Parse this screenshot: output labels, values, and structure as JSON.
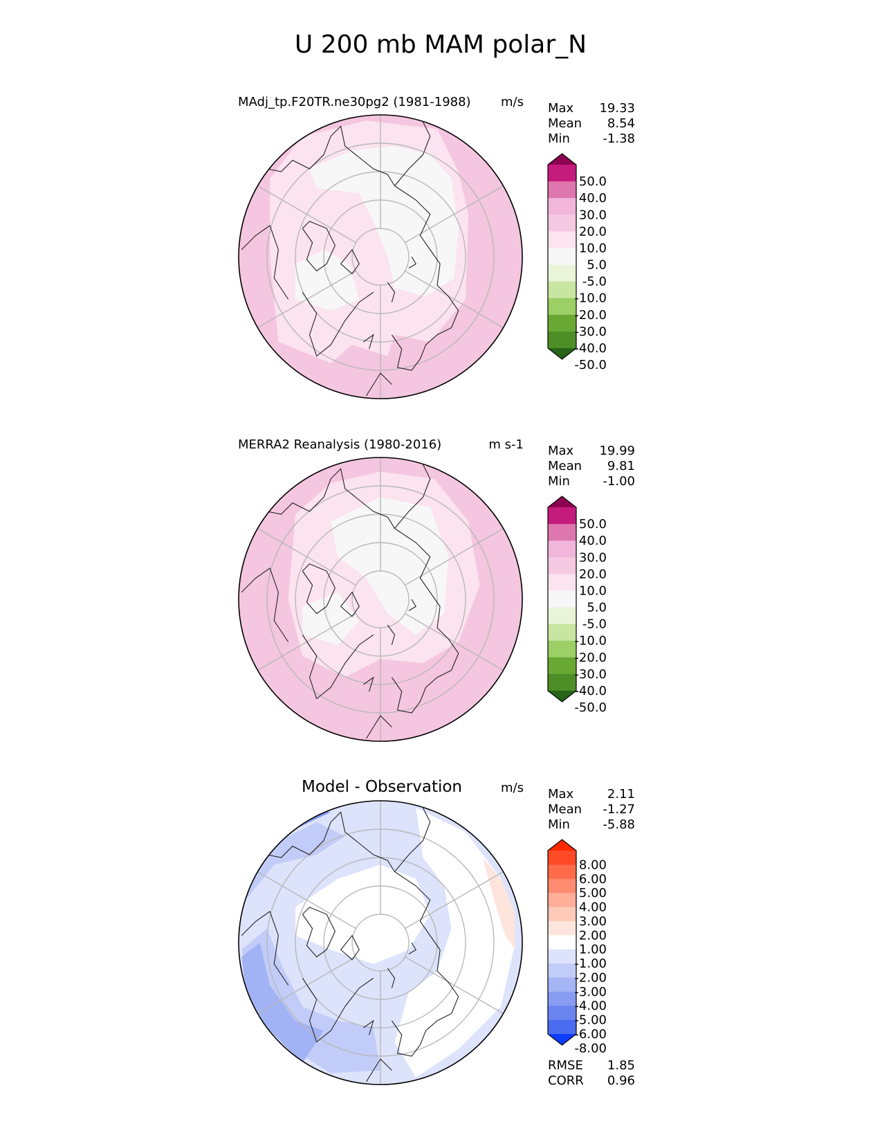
{
  "title": "U 200 mb MAM polar_N",
  "chart_data": [
    {
      "type": "heatmap",
      "projection": "north polar stereographic",
      "title": "MAdj_tp.F20TR.ne30pg2 (1981-1988)",
      "units": "m/s",
      "stats": [
        {
          "label": "Max",
          "value": "19.33"
        },
        {
          "label": "Mean",
          "value": "8.54"
        },
        {
          "label": "Min",
          "value": "-1.38"
        }
      ],
      "colorbar": {
        "tick_labels": [
          "50.0",
          "40.0",
          "30.0",
          "20.0",
          "10.0",
          "5.0",
          "-5.0",
          "-10.0",
          "-20.0",
          "-30.0",
          "-40.0",
          "-50.0"
        ],
        "colors": [
          "#8e0152",
          "#c51b7d",
          "#de77ae",
          "#f1b6da",
          "#f5c9e2",
          "#fbe3ef",
          "#f7f7f7",
          "#e9f4d8",
          "#c9e6a1",
          "#9ccf65",
          "#6aa834",
          "#4d8e26",
          "#276419"
        ]
      },
      "field_colors": [
        "#f5c6df",
        "#fbe3ef",
        "#f7f7f7"
      ]
    },
    {
      "type": "heatmap",
      "projection": "north polar stereographic",
      "title": "MERRA2 Reanalysis (1980-2016)",
      "units": "m s-1",
      "stats": [
        {
          "label": "Max",
          "value": "19.99"
        },
        {
          "label": "Mean",
          "value": "9.81"
        },
        {
          "label": "Min",
          "value": "-1.00"
        }
      ],
      "colorbar": {
        "tick_labels": [
          "50.0",
          "40.0",
          "30.0",
          "20.0",
          "10.0",
          "5.0",
          "-5.0",
          "-10.0",
          "-20.0",
          "-30.0",
          "-40.0",
          "-50.0"
        ],
        "colors": [
          "#8e0152",
          "#c51b7d",
          "#de77ae",
          "#f1b6da",
          "#f5c9e2",
          "#fbe3ef",
          "#f7f7f7",
          "#e9f4d8",
          "#c9e6a1",
          "#9ccf65",
          "#6aa834",
          "#4d8e26",
          "#276419"
        ]
      },
      "field_colors": [
        "#f5c6df",
        "#fbe3ef",
        "#f7f7f7"
      ]
    },
    {
      "type": "heatmap",
      "projection": "north polar stereographic",
      "title": "Model - Observation",
      "units": "m/s",
      "stats": [
        {
          "label": "Max",
          "value": "2.11"
        },
        {
          "label": "Mean",
          "value": "-1.27"
        },
        {
          "label": "Min",
          "value": "-5.88"
        }
      ],
      "colorbar": {
        "tick_labels": [
          "8.00",
          "6.00",
          "5.00",
          "4.00",
          "3.00",
          "2.00",
          "1.00",
          "-1.00",
          "-2.00",
          "-3.00",
          "-4.00",
          "-5.00",
          "-6.00",
          "-8.00"
        ],
        "colors": [
          "#ff2a00",
          "#ff4a26",
          "#ff6a4a",
          "#ff8c70",
          "#ffae98",
          "#ffcab9",
          "#fde5dd",
          "#ffffff",
          "#dde3fb",
          "#c2ccf8",
          "#a6b5f5",
          "#889df2",
          "#6a85ef",
          "#4a6cf0",
          "#0d3cff"
        ]
      },
      "field_colors": [
        "#ffffff",
        "#dde3fb",
        "#c2ccf8",
        "#a2b3f5",
        "#7f97f1",
        "#5c7ef0",
        "#fde5dd"
      ],
      "footer_stats": [
        {
          "label": "RMSE",
          "value": "1.85"
        },
        {
          "label": "CORR",
          "value": "0.96"
        }
      ]
    }
  ]
}
